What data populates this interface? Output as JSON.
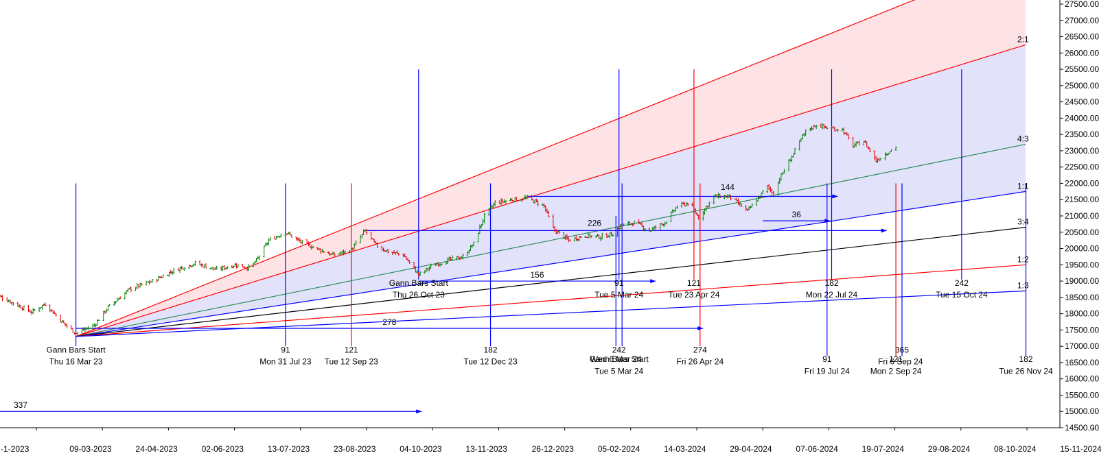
{
  "chart_data": {
    "type": "candlestick",
    "y_axis": {
      "side": "right",
      "range": [
        14500,
        27500
      ],
      "step": 500,
      "ticks": [
        "27500.00",
        "27000.00",
        "26500.00",
        "26000.00",
        "25500.00",
        "25000.00",
        "24500.00",
        "24000.00",
        "23500.00",
        "23000.00",
        "22500.00",
        "22000.00",
        "21500.00",
        "21000.00",
        "20500.00",
        "20000.00",
        "19500.00",
        "19000.00",
        "18500.00",
        "18000.00",
        "17500.00",
        "17000.00",
        "16500.00",
        "16000.00",
        "15500.00",
        "15000.00",
        "14500.00"
      ]
    },
    "x_axis": {
      "ticks": [
        "-1-2023",
        "09-03-2023",
        "24-04-2023",
        "02-06-2023",
        "13-07-2023",
        "23-08-2023",
        "04-10-2023",
        "13-11-2023",
        "26-12-2023",
        "05-02-2024",
        "14-03-2024",
        "29-04-2024",
        "07-06-2024",
        "19-07-2024",
        "29-08-2024",
        "08-10-2024",
        "15-11-2024"
      ]
    },
    "candle_colors": {
      "up": "#008000",
      "down": "#e00000"
    },
    "price_path": [
      [
        "2023-01-20",
        18650
      ],
      [
        "2023-02-02",
        18350
      ],
      [
        "2023-02-15",
        18050
      ],
      [
        "2023-02-24",
        18300
      ],
      [
        "2023-03-08",
        17700
      ],
      [
        "2023-03-16",
        17400
      ],
      [
        "2023-03-28",
        17650
      ],
      [
        "2023-04-06",
        18200
      ],
      [
        "2023-04-20",
        18750
      ],
      [
        "2023-05-05",
        19000
      ],
      [
        "2023-05-20",
        19350
      ],
      [
        "2023-06-02",
        19550
      ],
      [
        "2023-06-16",
        19350
      ],
      [
        "2023-06-28",
        19500
      ],
      [
        "2023-07-08",
        19400
      ],
      [
        "2023-07-13",
        19700
      ],
      [
        "2023-07-20",
        20250
      ],
      [
        "2023-07-31",
        20500
      ],
      [
        "2023-08-08",
        20250
      ],
      [
        "2023-08-20",
        20000
      ],
      [
        "2023-08-31",
        19800
      ],
      [
        "2023-09-12",
        19950
      ],
      [
        "2023-09-21",
        20550
      ],
      [
        "2023-09-28",
        20100
      ],
      [
        "2023-10-06",
        19900
      ],
      [
        "2023-10-16",
        19800
      ],
      [
        "2023-10-26",
        19200
      ],
      [
        "2023-11-05",
        19500
      ],
      [
        "2023-11-15",
        19650
      ],
      [
        "2023-11-24",
        19750
      ],
      [
        "2023-12-01",
        20150
      ],
      [
        "2023-12-08",
        21000
      ],
      [
        "2023-12-15",
        21400
      ],
      [
        "2023-12-26",
        21500
      ],
      [
        "2024-01-05",
        21550
      ],
      [
        "2024-01-12",
        21400
      ],
      [
        "2024-01-16",
        21300
      ],
      [
        "2024-01-22",
        20600
      ],
      [
        "2024-02-01",
        20250
      ],
      [
        "2024-02-12",
        20400
      ],
      [
        "2024-02-22",
        20350
      ],
      [
        "2024-03-01",
        20450
      ],
      [
        "2024-03-06",
        20700
      ],
      [
        "2024-03-15",
        20800
      ],
      [
        "2024-03-25",
        20550
      ],
      [
        "2024-04-04",
        20800
      ],
      [
        "2024-04-12",
        21300
      ],
      [
        "2024-04-20",
        21400
      ],
      [
        "2024-04-26",
        20950
      ],
      [
        "2024-05-06",
        21600
      ],
      [
        "2024-05-16",
        21600
      ],
      [
        "2024-05-28",
        21150
      ],
      [
        "2024-06-04",
        21550
      ],
      [
        "2024-06-10",
        21900
      ],
      [
        "2024-06-14",
        21700
      ],
      [
        "2024-06-18",
        22150
      ],
      [
        "2024-06-28",
        23000
      ],
      [
        "2024-07-05",
        23600
      ],
      [
        "2024-07-12",
        23800
      ],
      [
        "2024-07-19",
        23700
      ],
      [
        "2024-07-29",
        23650
      ],
      [
        "2024-08-05",
        23150
      ],
      [
        "2024-08-12",
        23300
      ],
      [
        "2024-08-20",
        22700
      ],
      [
        "2024-08-26",
        22900
      ],
      [
        "2024-09-03",
        23150
      ]
    ],
    "gann_fan": {
      "origin": {
        "date": "2023-03-16",
        "price": 17300
      },
      "lines": [
        {
          "label": "",
          "color": "#ff0000",
          "end_price": 29000
        },
        {
          "label": "2:1",
          "color": "#ff0000",
          "end_price": 26250
        },
        {
          "label": "4:3",
          "color": "#2e8b57",
          "end_price": 23200
        },
        {
          "label": "1:1",
          "color": "#0000ff",
          "end_price": 21750
        },
        {
          "label": "3:4",
          "color": "#000000",
          "end_price": 20650
        },
        {
          "label": "1:2",
          "color": "#ff0000",
          "end_price": 19500
        },
        {
          "label": "1:3",
          "color": "#0000ff",
          "end_price": 18700
        }
      ]
    },
    "vertical_lines": [
      {
        "date": "2023-03-16",
        "color": "#0000ff",
        "top": 22000,
        "bottom": 17000
      },
      {
        "date": "2023-07-31",
        "color": "#0000ff",
        "top": 22000,
        "bottom": 17000
      },
      {
        "date": "2023-09-12",
        "color": "#ff0000",
        "top": 22000,
        "bottom": 17000
      },
      {
        "date": "2023-10-26",
        "color": "#0000ff",
        "top": 25500,
        "bottom": 19050
      },
      {
        "date": "2023-12-12",
        "color": "#0000ff",
        "top": 22000,
        "bottom": 17000
      },
      {
        "date": "2024-03-05",
        "color": "#0000ff",
        "top": 25500,
        "bottom": 19050
      },
      {
        "date": "2024-03-03",
        "color": "#0000ff",
        "top": 21000,
        "bottom": 17000
      },
      {
        "date": "2024-03-07",
        "color": "#0000ff",
        "top": 22000,
        "bottom": 17000
      },
      {
        "date": "2024-04-23",
        "color": "#ff0000",
        "top": 25500,
        "bottom": 19050
      },
      {
        "date": "2024-04-27",
        "color": "#ff0000",
        "top": 22000,
        "bottom": 17000
      },
      {
        "date": "2024-07-22",
        "color": "#0000ff",
        "top": 25500,
        "bottom": 19050
      },
      {
        "date": "2024-07-19",
        "color": "#0000ff",
        "top": 22000,
        "bottom": 16700
      },
      {
        "date": "2024-09-02",
        "color": "#ff0000",
        "top": 22000,
        "bottom": 16700
      },
      {
        "date": "2024-09-06",
        "color": "#0000ff",
        "top": 22000,
        "bottom": 16700
      },
      {
        "date": "2024-10-15",
        "color": "#0000ff",
        "top": 25500,
        "bottom": 19050
      },
      {
        "date": "2024-11-26",
        "color": "#0000ff",
        "top": 22000,
        "bottom": 16700
      }
    ],
    "arrows": [
      {
        "from": "2023-09-21",
        "to": "2024-08-27",
        "price": 20550,
        "label": "",
        "color": "#0000ff"
      },
      {
        "from": "2024-01-05",
        "to": "2024-07-26",
        "price": 21600,
        "label": "",
        "color": "#0000ff"
      },
      {
        "from": "2024-06-07",
        "to": "2024-07-21",
        "price": 20850,
        "label": "36",
        "color": "#0000ff"
      },
      {
        "from": "2023-10-26",
        "to": "2024-03-29",
        "price": 19000,
        "label": "156",
        "color": "#0000ff"
      },
      {
        "from": "2023-03-16",
        "to": "2024-04-29",
        "price": 17550,
        "label": "278",
        "color": "#0000ff"
      },
      {
        "from": "2023-01-01",
        "to": "2023-10-28",
        "price": 15000,
        "label": "337",
        "color": "#0000ff"
      }
    ],
    "annotations": [
      {
        "date": "2023-03-16",
        "price": 16800,
        "text": "Gann Bars Start"
      },
      {
        "date": "2023-03-16",
        "price": 16450,
        "text": "Thu 16 Mar 23"
      },
      {
        "date": "2023-07-31",
        "price": 16800,
        "text": "91"
      },
      {
        "date": "2023-07-31",
        "price": 16450,
        "text": "Mon 31 Jul 23"
      },
      {
        "date": "2023-09-12",
        "price": 16800,
        "text": "121"
      },
      {
        "date": "2023-09-12",
        "price": 16450,
        "text": "Tue 12 Sep 23"
      },
      {
        "date": "2023-10-26",
        "price": 18850,
        "text": "Gann Bars Start"
      },
      {
        "date": "2023-10-26",
        "price": 18500,
        "text": "Thu 26 Oct 23"
      },
      {
        "date": "2023-12-12",
        "price": 16800,
        "text": "182"
      },
      {
        "date": "2023-12-12",
        "price": 16450,
        "text": "Tue 12 Dec 23"
      },
      {
        "date": "2024-03-05",
        "price": 18850,
        "text": "91"
      },
      {
        "date": "2024-03-05",
        "price": 18500,
        "text": "Tue 5 Mar 24"
      },
      {
        "date": "2024-04-23",
        "price": 18850,
        "text": "121"
      },
      {
        "date": "2024-04-23",
        "price": 18500,
        "text": "Tue 23 Apr 24"
      },
      {
        "date": "2024-07-22",
        "price": 18850,
        "text": "182"
      },
      {
        "date": "2024-07-22",
        "price": 18500,
        "text": "Mon 22 Jul 24"
      },
      {
        "date": "2024-10-15",
        "price": 18850,
        "text": "242"
      },
      {
        "date": "2024-10-15",
        "price": 18500,
        "text": "Tue 15 Oct 24"
      },
      {
        "date": "2024-03-05",
        "price": 16800,
        "text": "242"
      },
      {
        "date": "2024-03-03",
        "price": 16520,
        "text": "Wed 6 Mar 24"
      },
      {
        "date": "2024-03-05",
        "price": 16520,
        "text": "Gann Bars Start"
      },
      {
        "date": "2024-03-05",
        "price": 16150,
        "text": "Tue 5 Mar 24"
      },
      {
        "date": "2024-04-27",
        "price": 16800,
        "text": "274"
      },
      {
        "date": "2024-04-27",
        "price": 16450,
        "text": "Fri 26 Apr 24"
      },
      {
        "date": "2024-07-19",
        "price": 16520,
        "text": "91"
      },
      {
        "date": "2024-07-19",
        "price": 16150,
        "text": "Fri 19 Jul 24"
      },
      {
        "date": "2024-09-06",
        "price": 16800,
        "text": "365"
      },
      {
        "date": "2024-09-05",
        "price": 16450,
        "text": "Fri 6 Sep 24"
      },
      {
        "date": "2024-09-02",
        "price": 16520,
        "text": "121"
      },
      {
        "date": "2024-09-02",
        "price": 16150,
        "text": "Mon 2 Sep 24"
      },
      {
        "date": "2024-11-26",
        "price": 16520,
        "text": "182"
      },
      {
        "date": "2024-11-26",
        "price": 16150,
        "text": "Tue 26 Nov 24"
      },
      {
        "date": "2024-05-15",
        "price": 21800,
        "text": "144"
      },
      {
        "date": "2024-02-18",
        "price": 20700,
        "text": "226"
      }
    ]
  }
}
